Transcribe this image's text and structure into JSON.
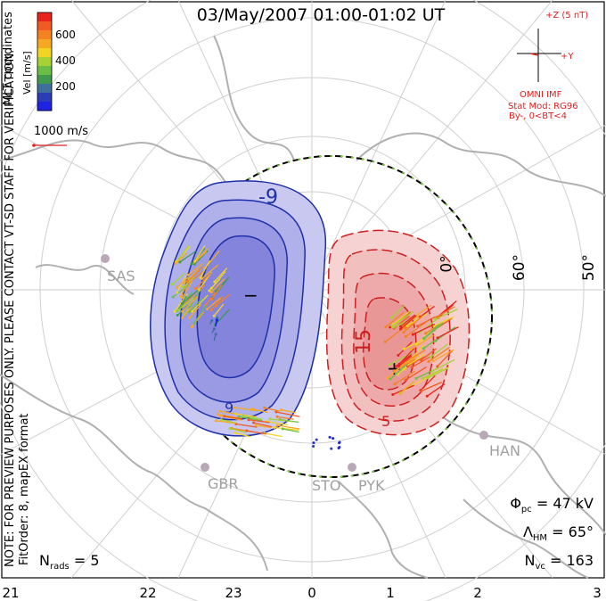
{
  "title": "03/May/2007 01:00-01:02 UT",
  "colorbar": {
    "label": "Vel [m/s]",
    "ticks": [
      "600",
      "400",
      "200"
    ],
    "colors": [
      "#e8231b",
      "#f15a22",
      "#f58220",
      "#f7a823",
      "#f2d422",
      "#a6d235",
      "#6abd45",
      "#3f9a4d",
      "#3f6f9d",
      "#2a3db7",
      "#1f22e0"
    ]
  },
  "coordinates": "MLT coordinates",
  "scale_vector": "1000 m/s",
  "imf": {
    "z_label": "+Z (5 nT)",
    "y_label": "+Y",
    "source": "OMNI IMF",
    "model": "Stat Mod: RG96",
    "condition": "By-, 0<BT<4"
  },
  "notes": {
    "preview": "NOTE: FOR PREVIEW PURPOSES ONLY. PLEASE CONTACT VT-SD STAFF FOR VERIFICATION.",
    "fit": "FitOrder: 8, mapEX format"
  },
  "lat_labels": [
    "0°",
    "60°",
    "50°"
  ],
  "contour_labels": {
    "negative": "-9",
    "negative_inner": "9",
    "positive": "15",
    "positive_inner": "5"
  },
  "extrema": {
    "min_symbol": "−",
    "max_symbol": "+"
  },
  "stations": [
    "SAS",
    "HAN",
    "GBR",
    "STO",
    "PYK"
  ],
  "stats": {
    "phi_pc": "Φpc = 47 kV",
    "lambda_hm": "ΛHM = 65°",
    "n_vc": "Nvc = 163",
    "n_rads": "Nrads = 5"
  },
  "stats_parts": {
    "phi_sym": "Φ",
    "phi_sub": "pc",
    "phi_val": " = 47 kV",
    "lam_sym": "Λ",
    "lam_sub": "HM",
    "lam_val": " = 65°",
    "nvc_sym": "N",
    "nvc_sub": "vc",
    "nvc_val": " = 163",
    "nrads_sym": "N",
    "nrads_sub": "rads",
    "nrads_val": " = 5"
  },
  "mlt_labels": [
    "21",
    "22",
    "23",
    "0",
    "1",
    "2",
    "3"
  ],
  "colors": {
    "negative_contour": "#1e2fa8",
    "positive_contour": "#cc2020",
    "negative_fill": "#8c8ce0",
    "positive_fill": "#f0a8a8",
    "heppner_boundary": "#000000",
    "boundary_dash": "#7fd23a",
    "coastline": "#b4b4b4",
    "grid": "#c8c8c8"
  }
}
